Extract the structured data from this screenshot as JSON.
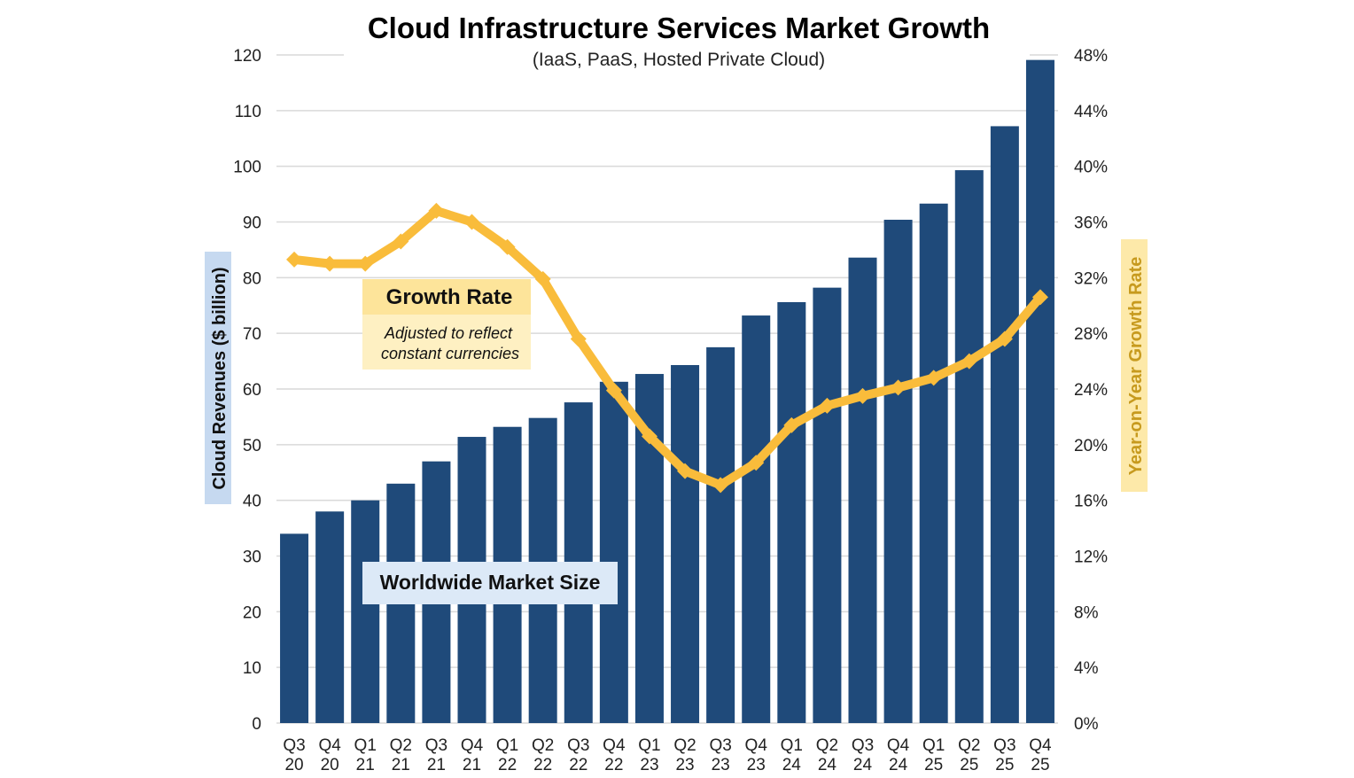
{
  "chart_data": {
    "type": "bar+line",
    "title": "Cloud Infrastructure Services Market Growth",
    "subtitle": "(IaaS, PaaS, Hosted Private Cloud)",
    "ylabel": "Cloud Revenues ($ billion)",
    "y2label": "Year-on-Year Growth Rate",
    "ylim": [
      0,
      120
    ],
    "y2lim": [
      0,
      48
    ],
    "yticks": [
      "0",
      "10",
      "20",
      "30",
      "40",
      "50",
      "60",
      "70",
      "80",
      "90",
      "100",
      "110",
      "120"
    ],
    "y2ticks": [
      "0%",
      "4%",
      "8%",
      "12%",
      "16%",
      "20%",
      "24%",
      "28%",
      "32%",
      "36%",
      "40%",
      "44%",
      "48%"
    ],
    "grid": true,
    "categories": [
      [
        "Q3",
        "20"
      ],
      [
        "Q4",
        "20"
      ],
      [
        "Q1",
        "21"
      ],
      [
        "Q2",
        "21"
      ],
      [
        "Q3",
        "21"
      ],
      [
        "Q4",
        "21"
      ],
      [
        "Q1",
        "22"
      ],
      [
        "Q2",
        "22"
      ],
      [
        "Q3",
        "22"
      ],
      [
        "Q4",
        "22"
      ],
      [
        "Q1",
        "23"
      ],
      [
        "Q2",
        "23"
      ],
      [
        "Q3",
        "23"
      ],
      [
        "Q4",
        "23"
      ],
      [
        "Q1",
        "24"
      ],
      [
        "Q2",
        "24"
      ],
      [
        "Q3",
        "24"
      ],
      [
        "Q4",
        "24"
      ],
      [
        "Q1",
        "25"
      ],
      [
        "Q2",
        "25"
      ],
      [
        "Q3",
        "25"
      ],
      [
        "Q4",
        "25"
      ]
    ],
    "series": [
      {
        "name": "Worldwide Market Size",
        "type": "bar",
        "axis": "left",
        "color": "#1f4a7a",
        "values": [
          34,
          38,
          40,
          43,
          47,
          51.4,
          53.2,
          54.8,
          57.6,
          61.3,
          62.7,
          64.3,
          67.5,
          73.2,
          75.6,
          78.2,
          83.6,
          90.4,
          93.3,
          99.3,
          107.2,
          119.1
        ]
      },
      {
        "name": "Growth Rate",
        "type": "line",
        "axis": "right",
        "color": "#f9bc3b",
        "values": [
          33.3,
          33.0,
          33.0,
          34.6,
          36.8,
          36.0,
          34.2,
          31.9,
          27.6,
          23.9,
          20.6,
          18.1,
          17.1,
          18.7,
          21.4,
          22.8,
          23.5,
          24.1,
          24.8,
          26.0,
          27.6,
          30.6
        ]
      }
    ],
    "annotations": {
      "growth_title": "Growth Rate",
      "growth_note_1": "Adjusted to reflect",
      "growth_note_2": "constant currencies",
      "market_label": "Worldwide Market Size"
    },
    "colors": {
      "bar": "#1f4a7a",
      "line": "#f9bc3b",
      "left_axis_bg": "#c6d9f0",
      "right_axis_bg": "#fde9a9"
    }
  }
}
